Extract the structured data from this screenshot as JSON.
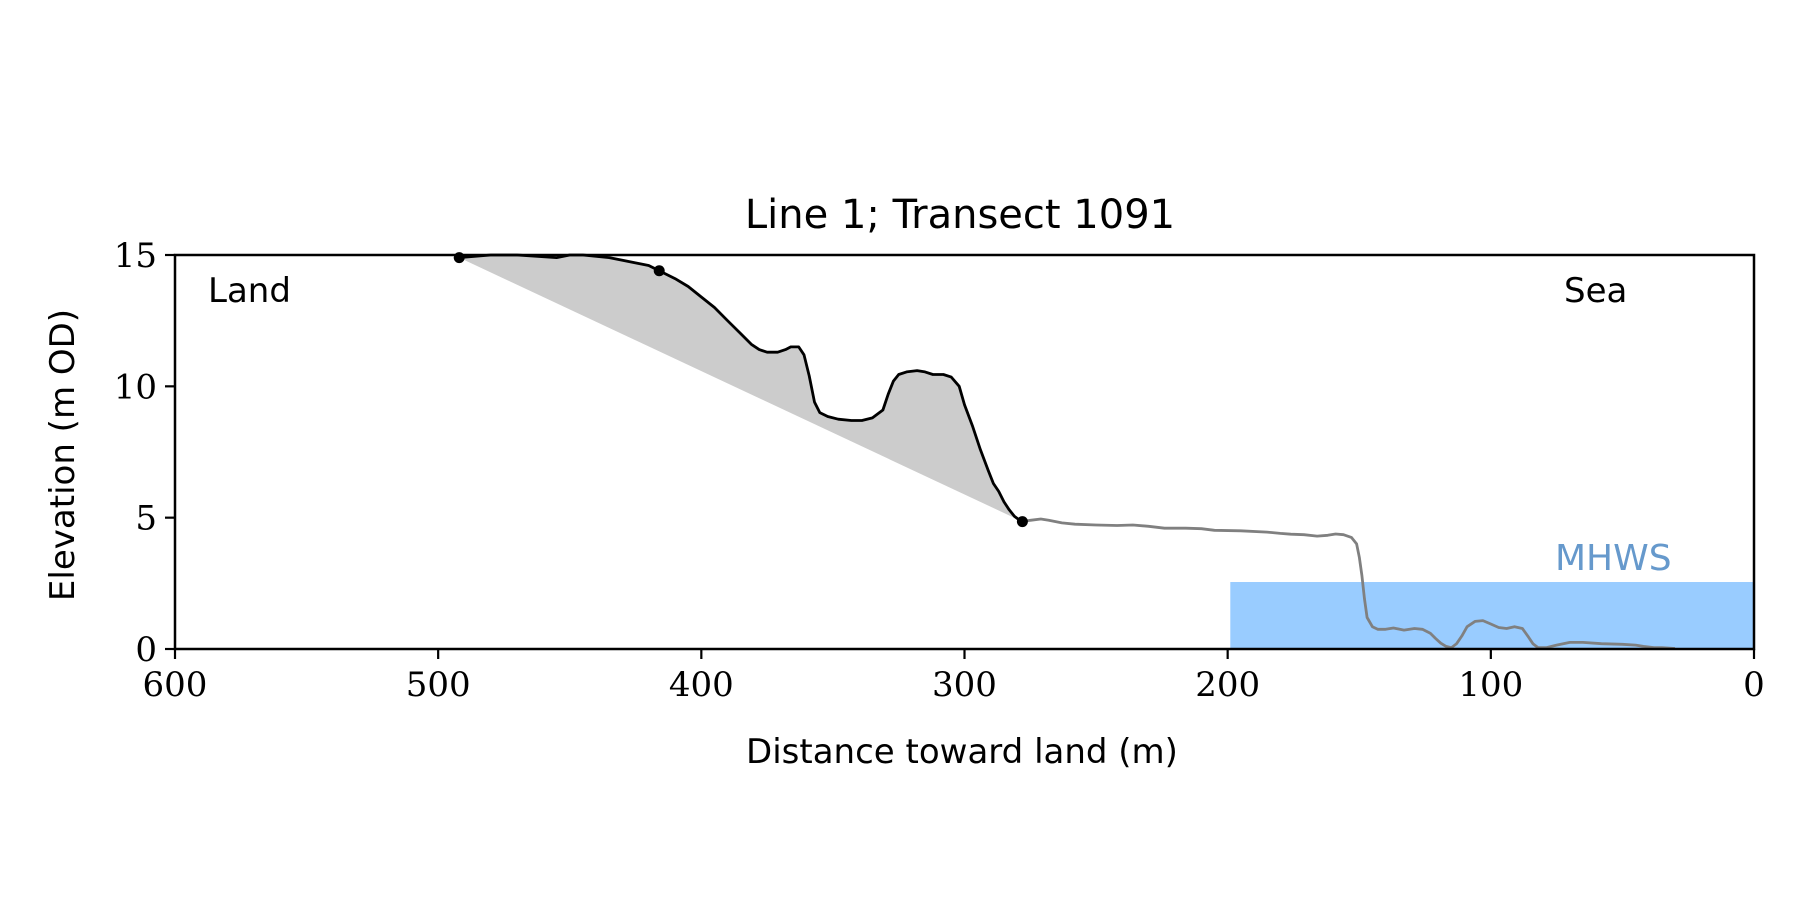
{
  "chart_data": {
    "type": "line",
    "title": "Line 1; Transect 1091",
    "xlabel": "Distance toward land (m)",
    "ylabel": "Elevation (m OD)",
    "xlim": [
      600,
      0
    ],
    "ylim": [
      0,
      15
    ],
    "x_ticks": [
      600,
      500,
      400,
      300,
      200,
      100,
      0
    ],
    "x_tick_labels": [
      "600",
      "500",
      "400",
      "300",
      "200",
      "100",
      "0"
    ],
    "y_ticks": [
      0,
      5,
      10,
      15
    ],
    "y_tick_labels": [
      "0",
      "5",
      "10",
      "15"
    ],
    "grid": false,
    "annotations": {
      "land": "Land",
      "sea": "Sea",
      "mhws": "MHWS"
    },
    "mhws": {
      "elevation": 2.55,
      "x_start": 199,
      "x_end": 0,
      "color": "#99ccff",
      "label_color": "#6699cc"
    },
    "cliff_profile": {
      "color": "#000000",
      "points": [
        [
          492,
          14.9
        ],
        [
          480,
          15.0
        ],
        [
          470,
          15.0
        ],
        [
          455,
          14.9
        ],
        [
          450,
          15.0
        ],
        [
          445,
          15.0
        ],
        [
          435,
          14.9
        ],
        [
          430,
          14.8
        ],
        [
          425,
          14.7
        ],
        [
          420,
          14.6
        ],
        [
          416,
          14.4
        ],
        [
          410,
          14.1
        ],
        [
          405,
          13.8
        ],
        [
          400,
          13.4
        ],
        [
          395,
          13.0
        ],
        [
          390,
          12.5
        ],
        [
          385,
          12.0
        ],
        [
          381,
          11.6
        ],
        [
          378,
          11.4
        ],
        [
          375,
          11.3
        ],
        [
          371,
          11.3
        ],
        [
          368,
          11.4
        ],
        [
          366,
          11.5
        ],
        [
          363,
          11.5
        ],
        [
          361,
          11.2
        ],
        [
          359,
          10.4
        ],
        [
          357,
          9.4
        ],
        [
          355,
          9.0
        ],
        [
          352,
          8.85
        ],
        [
          348,
          8.75
        ],
        [
          343,
          8.7
        ],
        [
          339,
          8.7
        ],
        [
          335,
          8.8
        ],
        [
          331,
          9.1
        ],
        [
          329,
          9.7
        ],
        [
          327,
          10.2
        ],
        [
          325,
          10.45
        ],
        [
          322,
          10.55
        ],
        [
          318,
          10.6
        ],
        [
          315,
          10.55
        ],
        [
          312,
          10.45
        ],
        [
          308,
          10.45
        ],
        [
          305,
          10.35
        ],
        [
          302,
          10.0
        ],
        [
          300,
          9.3
        ],
        [
          297,
          8.5
        ],
        [
          294,
          7.6
        ],
        [
          291,
          6.8
        ],
        [
          289,
          6.3
        ],
        [
          287,
          6.0
        ],
        [
          285,
          5.6
        ],
        [
          283,
          5.3
        ],
        [
          281,
          5.05
        ],
        [
          279,
          4.9
        ],
        [
          278,
          4.85
        ]
      ]
    },
    "foreshore_profile": {
      "color": "#808080",
      "points": [
        [
          278,
          4.85
        ],
        [
          275,
          4.9
        ],
        [
          271,
          4.95
        ],
        [
          268,
          4.9
        ],
        [
          263,
          4.8
        ],
        [
          258,
          4.75
        ],
        [
          250,
          4.72
        ],
        [
          242,
          4.7
        ],
        [
          236,
          4.72
        ],
        [
          230,
          4.67
        ],
        [
          224,
          4.6
        ],
        [
          216,
          4.6
        ],
        [
          210,
          4.58
        ],
        [
          205,
          4.52
        ],
        [
          195,
          4.5
        ],
        [
          185,
          4.45
        ],
        [
          180,
          4.4
        ],
        [
          176,
          4.37
        ],
        [
          171,
          4.35
        ],
        [
          166,
          4.3
        ],
        [
          162,
          4.33
        ],
        [
          159,
          4.38
        ],
        [
          156,
          4.35
        ],
        [
          153,
          4.25
        ],
        [
          151,
          4.0
        ],
        [
          150,
          3.5
        ],
        [
          149,
          2.8
        ],
        [
          148,
          1.9
        ],
        [
          147,
          1.2
        ],
        [
          145,
          0.85
        ],
        [
          143,
          0.75
        ],
        [
          140,
          0.75
        ],
        [
          137,
          0.8
        ],
        [
          133,
          0.72
        ],
        [
          129,
          0.78
        ],
        [
          126,
          0.75
        ],
        [
          123,
          0.6
        ],
        [
          121,
          0.4
        ],
        [
          119,
          0.22
        ],
        [
          117,
          0.1
        ],
        [
          115,
          0.05
        ],
        [
          113,
          0.2
        ],
        [
          111,
          0.5
        ],
        [
          109,
          0.85
        ],
        [
          106,
          1.05
        ],
        [
          103,
          1.08
        ],
        [
          100,
          0.95
        ],
        [
          97,
          0.82
        ],
        [
          94,
          0.78
        ],
        [
          91,
          0.85
        ],
        [
          88,
          0.78
        ],
        [
          86,
          0.5
        ],
        [
          84,
          0.2
        ],
        [
          82,
          0.05
        ],
        [
          79,
          0.05
        ],
        [
          75,
          0.15
        ],
        [
          70,
          0.25
        ],
        [
          65,
          0.25
        ],
        [
          58,
          0.2
        ],
        [
          50,
          0.18
        ],
        [
          45,
          0.15
        ],
        [
          42,
          0.1
        ],
        [
          38,
          0.05
        ],
        [
          35,
          0.05
        ],
        [
          30,
          0.02
        ]
      ]
    },
    "baseline": {
      "color": "#000000",
      "from": [
        492,
        14.9
      ],
      "to": [
        278,
        4.85
      ],
      "fill_color": "#cccccc"
    },
    "markers": [
      {
        "x": 492,
        "y": 14.9
      },
      {
        "x": 416,
        "y": 14.4
      },
      {
        "x": 278,
        "y": 4.85
      }
    ]
  }
}
